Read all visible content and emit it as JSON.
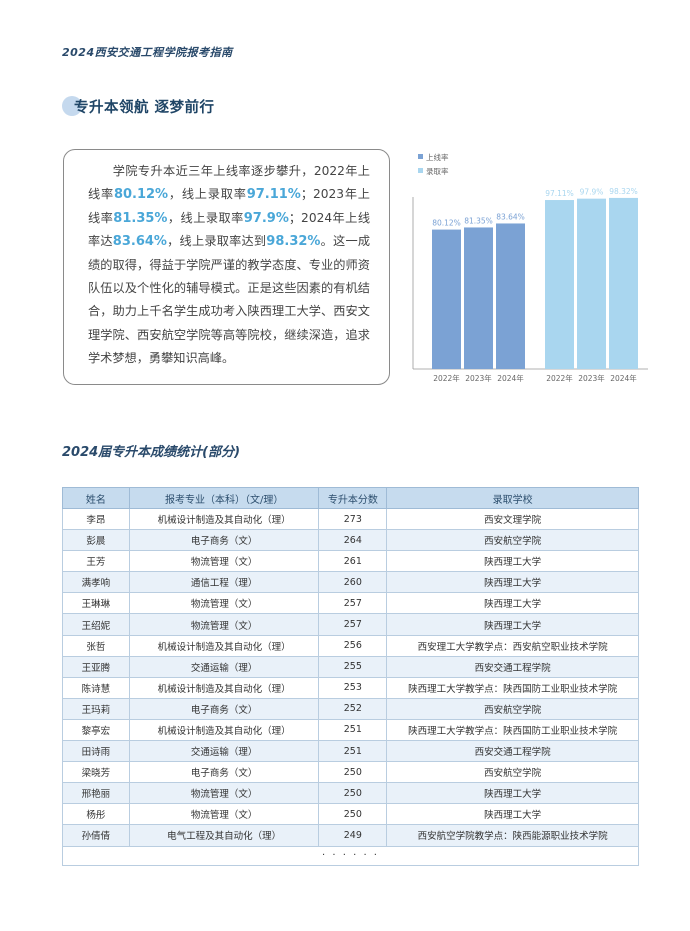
{
  "header": {
    "title": "2024西安交通工程学院报考指南"
  },
  "section": {
    "title": "专升本领航   逐梦前行"
  },
  "intro": {
    "p1": "学院专升本近三年上线率逐步攀升，2022年上线率",
    "v1": "80.12%",
    "p2": "，线上录取率",
    "v2": "97.11%",
    "p3": "；2023年上线率",
    "v3": "81.35%",
    "p4": "，线上录取率",
    "v4": "97.9%",
    "p5": "；2024年上线率达",
    "v5": "83.64%",
    "p6": "，线上录取率达到",
    "v6": "98.32%",
    "p7": "。这一成绩的取得，得益于学院严谨的教学态度、专业的师资队伍以及个性化的辅导模式。正是这些因素的有机结合，助力上千名学生成功考入陕西理工大学、西安文理学院、西安航空学院等高等院校，继续深造，追求学术梦想，勇攀知识高峰。"
  },
  "chart_data": {
    "type": "bar",
    "title": "",
    "legend_position": "top-left",
    "groups": [
      {
        "name": "上线率",
        "color": "#7ba2d4",
        "categories": [
          "2022年",
          "2023年",
          "2024年"
        ],
        "values": [
          80.12,
          81.35,
          83.64
        ],
        "labels": [
          "80.12%",
          "81.35%",
          "83.64%"
        ]
      },
      {
        "name": "录取率",
        "color": "#a9d6ef",
        "categories": [
          "2022年",
          "2023年",
          "2024年"
        ],
        "values": [
          97.11,
          97.9,
          98.32
        ],
        "labels": [
          "97.11%",
          "97.9%",
          "98.32%"
        ]
      }
    ],
    "ylim": [
      0,
      100
    ],
    "grid": false
  },
  "table": {
    "title": "2024届专升本成绩统计(部分)",
    "headers": [
      "姓名",
      "报考专业（本科）（文/理）",
      "专升本分数",
      "录取学校"
    ],
    "rows": [
      [
        "李昂",
        "机械设计制造及其自动化（理）",
        "273",
        "西安文理学院"
      ],
      [
        "彭晨",
        "电子商务（文）",
        "264",
        "西安航空学院"
      ],
      [
        "王芳",
        "物流管理（文）",
        "261",
        "陕西理工大学"
      ],
      [
        "满孝响",
        "通信工程（理）",
        "260",
        "陕西理工大学"
      ],
      [
        "王琳琳",
        "物流管理（文）",
        "257",
        "陕西理工大学"
      ],
      [
        "王绍妮",
        "物流管理（文）",
        "257",
        "陕西理工大学"
      ],
      [
        "张哲",
        "机械设计制造及其自动化（理）",
        "256",
        "西安理工大学教学点：西安航空职业技术学院"
      ],
      [
        "王亚腾",
        "交通运输（理）",
        "255",
        "西安交通工程学院"
      ],
      [
        "陈诗慧",
        "机械设计制造及其自动化（理）",
        "253",
        "陕西理工大学教学点：陕西国防工业职业技术学院"
      ],
      [
        "王玛莉",
        "电子商务（文）",
        "252",
        "西安航空学院"
      ],
      [
        "黎亭宏",
        "机械设计制造及其自动化（理）",
        "251",
        "陕西理工大学教学点：陕西国防工业职业技术学院"
      ],
      [
        "田诗雨",
        "交通运输（理）",
        "251",
        "西安交通工程学院"
      ],
      [
        "梁晓芳",
        "电子商务（文）",
        "250",
        "西安航空学院"
      ],
      [
        "邢艳丽",
        "物流管理（文）",
        "250",
        "陕西理工大学"
      ],
      [
        "杨彤",
        "物流管理（文）",
        "250",
        "陕西理工大学"
      ],
      [
        "孙倩倩",
        "电气工程及其自动化（理）",
        "249",
        "西安航空学院教学点：陕西能源职业技术学院"
      ]
    ],
    "ellipsis": "· · · · · ·"
  }
}
